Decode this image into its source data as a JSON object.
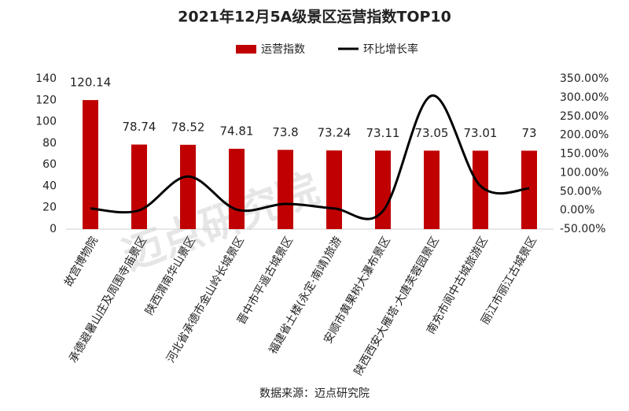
{
  "chart_data": {
    "type": "bar",
    "title": "2021年12月5A级景区运营指数TOP10",
    "source": "数据来源：迈点研究院",
    "watermark": "迈点研究院",
    "categories": [
      "故宫博物院",
      "承德避暑山庄及周围寺庙景区",
      "陕西渭南华山景区",
      "河北省承德市金山岭长城景区",
      "晋中市平遥古城景区",
      "福建省土楼(永定·南靖)旅游",
      "安顺市黄果树大瀑布景区",
      "陕西西安大雁塔·大唐芙蓉园景区",
      "南充市阆中古城旅游区",
      "丽江市丽江古城景区"
    ],
    "series": [
      {
        "name": "运营指数",
        "color": "#c00000",
        "values": [
          120.14,
          78.74,
          78.52,
          74.81,
          73.8,
          73.24,
          73.11,
          73.05,
          73.01,
          73
        ]
      },
      {
        "name": "环比增长率",
        "color": "#000000",
        "type": "line",
        "axis": "y2",
        "values": [
          5,
          0,
          90,
          2,
          17,
          5,
          -2,
          305,
          65,
          58
        ]
      }
    ],
    "ylim": [
      0,
      140
    ],
    "yticks": [
      0,
      20,
      40,
      60,
      80,
      100,
      120,
      140
    ],
    "y2lim": [
      -50,
      350
    ],
    "y2ticks": [
      {
        "value": -50,
        "label": "-50.00%"
      },
      {
        "value": 0,
        "label": "0.00%"
      },
      {
        "value": 50,
        "label": "50.00%"
      },
      {
        "value": 100,
        "label": "100.00%"
      },
      {
        "value": 150,
        "label": "150.00%"
      },
      {
        "value": 200,
        "label": "200.00%"
      },
      {
        "value": 250,
        "label": "250.00%"
      },
      {
        "value": 300,
        "label": "300.00%"
      },
      {
        "value": 350,
        "label": "350.00%"
      }
    ],
    "legend": "top",
    "grid": false
  }
}
